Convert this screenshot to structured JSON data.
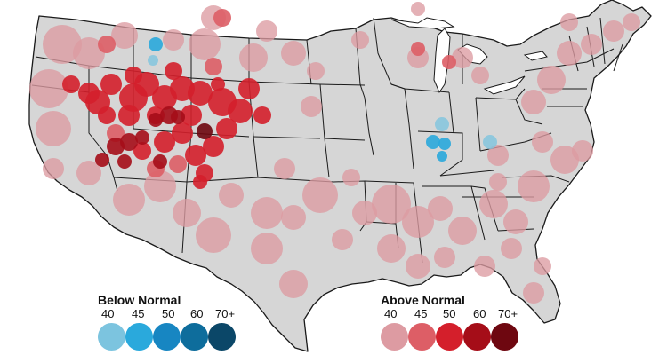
{
  "legend": {
    "below": {
      "title": "Below Normal",
      "labels": [
        "40",
        "45",
        "50",
        "60",
        "70+"
      ],
      "colors": [
        "#7cc4df",
        "#2aa9dc",
        "#1786c2",
        "#0e6d9c",
        "#0b4768"
      ]
    },
    "above": {
      "title": "Above Normal",
      "labels": [
        "40",
        "45",
        "50",
        "60",
        "70+"
      ],
      "colors": [
        "#dd9ba2",
        "#dd5e66",
        "#d41f2b",
        "#a50d18",
        "#6e0710"
      ]
    }
  },
  "map": {
    "land_color": "#d6d6d6",
    "border_color": "#1a1a1a",
    "icons": [
      "us-lower48-map"
    ]
  }
}
